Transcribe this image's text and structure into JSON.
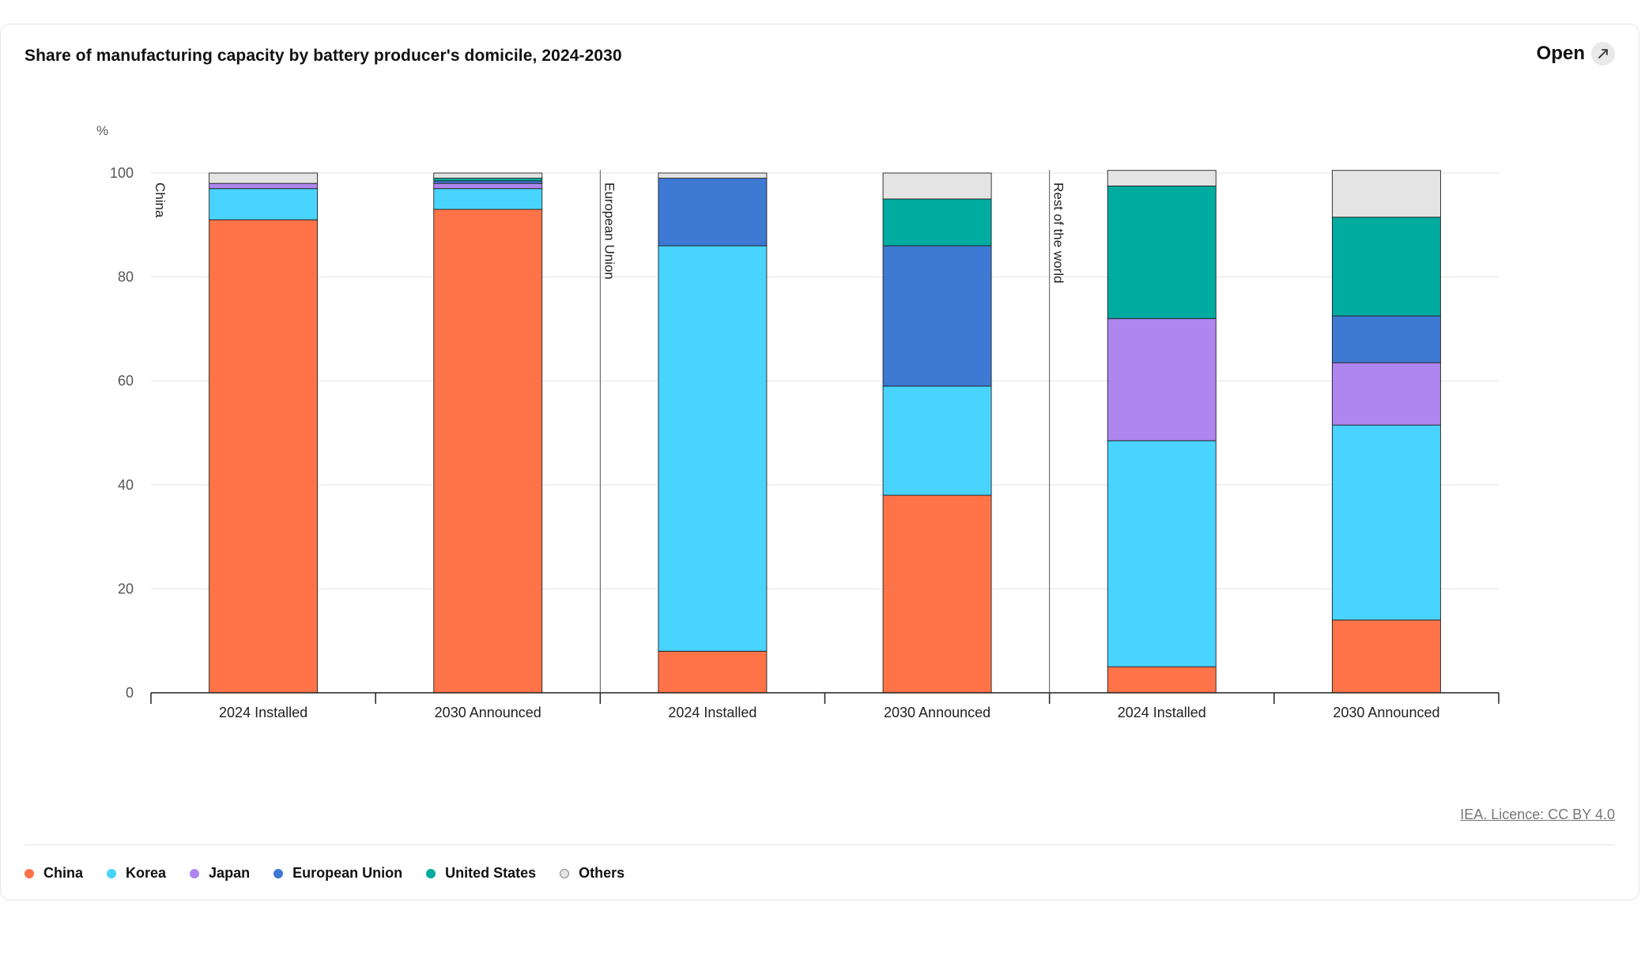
{
  "header": {
    "title": "Share of manufacturing capacity by battery producer's domicile, 2024-2030",
    "open_label": "Open"
  },
  "footer": {
    "credit": "IEA. Licence: CC BY 4.0"
  },
  "chart_data": {
    "type": "bar",
    "stacked": true,
    "ylabel": "%",
    "ylim": [
      0,
      100
    ],
    "yticks": [
      0,
      20,
      40,
      60,
      80,
      100
    ],
    "grid": true,
    "legend_position": "bottom-left",
    "panels": [
      "China",
      "European Union",
      "Rest of the world"
    ],
    "categories": [
      "2024 Installed",
      "2030 Announced"
    ],
    "series": [
      {
        "name": "China",
        "color": "#ff7349",
        "values": [
          [
            91,
            93
          ],
          [
            8,
            38
          ],
          [
            5,
            14
          ]
        ]
      },
      {
        "name": "Korea",
        "color": "#48d4fe",
        "values": [
          [
            6,
            4
          ],
          [
            78,
            21
          ],
          [
            43.5,
            37.5
          ]
        ]
      },
      {
        "name": "Japan",
        "color": "#af86ef",
        "values": [
          [
            1,
            1
          ],
          [
            0,
            0
          ],
          [
            23.5,
            12
          ]
        ]
      },
      {
        "name": "European Union",
        "color": "#3e79d3",
        "values": [
          [
            0,
            0.5
          ],
          [
            13,
            27
          ],
          [
            0,
            9
          ]
        ]
      },
      {
        "name": "United States",
        "color": "#00aba0",
        "values": [
          [
            0,
            0.5
          ],
          [
            0,
            9
          ],
          [
            25.5,
            19
          ]
        ]
      },
      {
        "name": "Others",
        "color": "#e4e4e4",
        "values": [
          [
            2,
            1
          ],
          [
            1,
            5
          ],
          [
            3,
            9
          ]
        ]
      }
    ]
  }
}
